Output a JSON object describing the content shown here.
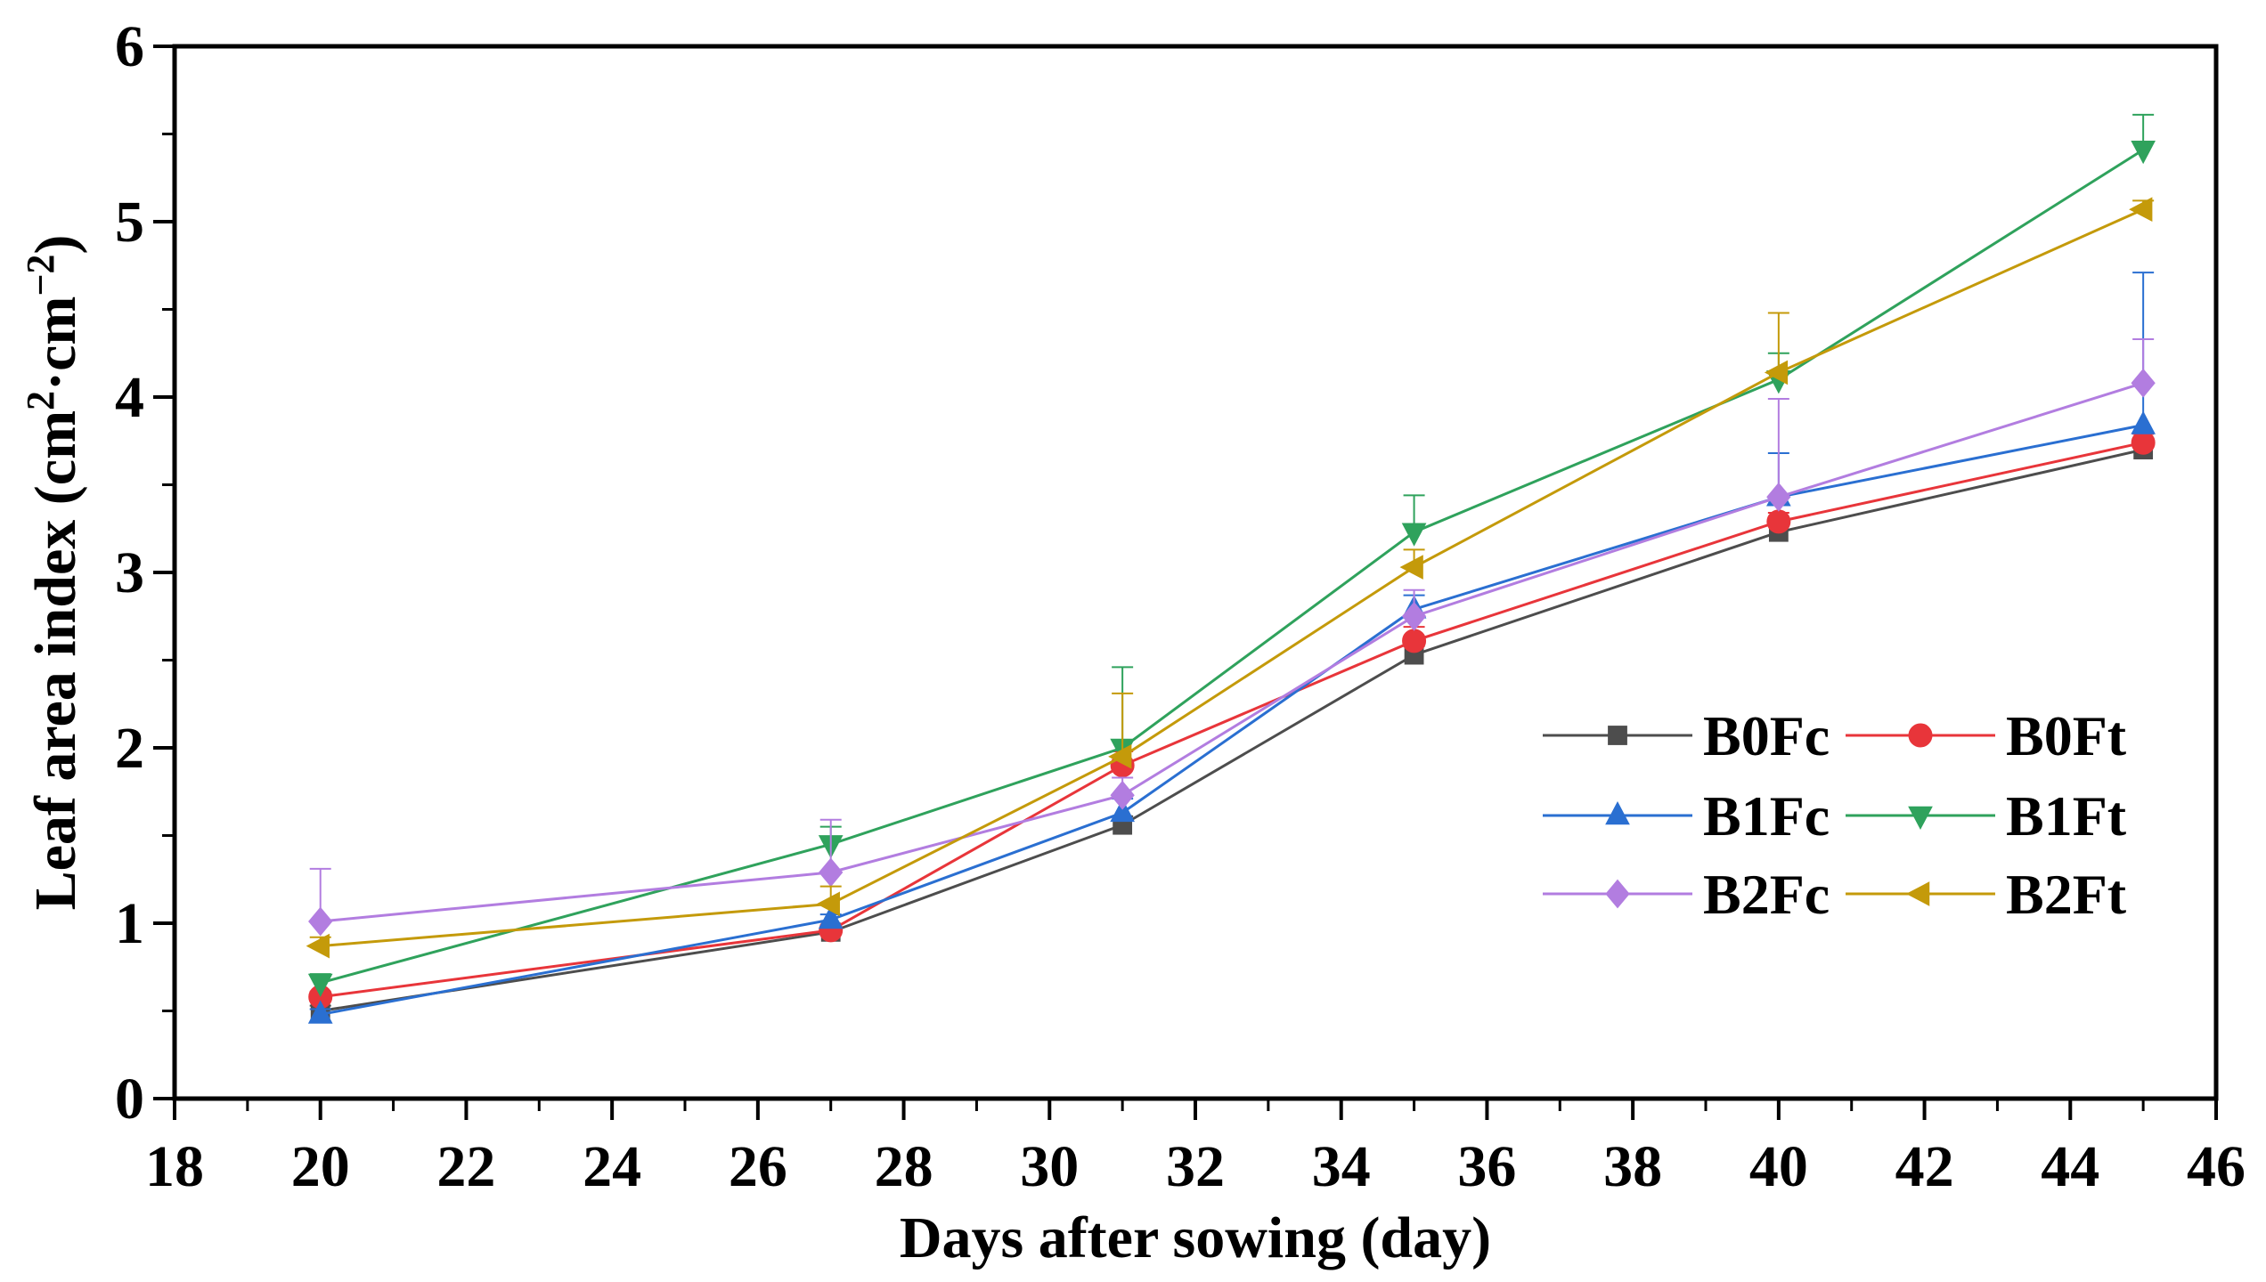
{
  "chart_data": {
    "type": "line",
    "xlabel": "Days after sowing (day)",
    "ylabel": {
      "prefix": "Leaf area index (cm",
      "sup1": "2",
      "mid": "·cm",
      "sup2": "−2",
      "suffix": ")"
    },
    "xlim": [
      18,
      46
    ],
    "ylim": [
      0,
      6
    ],
    "xticks": [
      "18",
      "20",
      "22",
      "24",
      "26",
      "28",
      "30",
      "32",
      "34",
      "36",
      "38",
      "40",
      "42",
      "44",
      "46"
    ],
    "yticks": [
      "0",
      "1",
      "2",
      "3",
      "4",
      "5",
      "6"
    ],
    "x": [
      20,
      27,
      31,
      35,
      40,
      45
    ],
    "legend_position": "center-right",
    "series": [
      {
        "name": "B0Fc",
        "color": "#4d4d4d",
        "marker": "square",
        "values": [
          0.5,
          0.95,
          1.56,
          2.53,
          3.23,
          3.7
        ],
        "errors": [
          0.03,
          0.03,
          0.05,
          0.05,
          0.05,
          0.05
        ]
      },
      {
        "name": "B0Ft",
        "color": "#e8353a",
        "marker": "circle",
        "values": [
          0.58,
          0.96,
          1.9,
          2.61,
          3.29,
          3.74
        ],
        "errors": [
          0.03,
          0.03,
          0.08,
          0.08,
          0.05,
          0.05
        ]
      },
      {
        "name": "B1Fc",
        "color": "#2a6fd1",
        "marker": "triangle-up",
        "values": [
          0.48,
          1.02,
          1.63,
          2.79,
          3.43,
          3.84
        ],
        "errors": [
          0.03,
          0.03,
          0.08,
          0.08,
          0.25,
          0.87
        ]
      },
      {
        "name": "B1Ft",
        "color": "#2fa25c",
        "marker": "triangle-down",
        "values": [
          0.66,
          1.45,
          2.0,
          3.23,
          4.1,
          5.41
        ],
        "errors": [
          0.05,
          0.1,
          0.46,
          0.21,
          0.15,
          0.2
        ]
      },
      {
        "name": "B2Fc",
        "color": "#b27de0",
        "marker": "diamond",
        "values": [
          1.01,
          1.29,
          1.73,
          2.75,
          3.43,
          4.08
        ],
        "errors": [
          0.3,
          0.3,
          0.1,
          0.15,
          0.56,
          0.25
        ]
      },
      {
        "name": "B2Ft",
        "color": "#c49a0a",
        "marker": "triangle-left",
        "values": [
          0.87,
          1.11,
          1.95,
          3.03,
          4.14,
          5.07
        ],
        "errors": [
          0.05,
          0.1,
          0.36,
          0.1,
          0.34,
          0.05
        ]
      }
    ]
  }
}
